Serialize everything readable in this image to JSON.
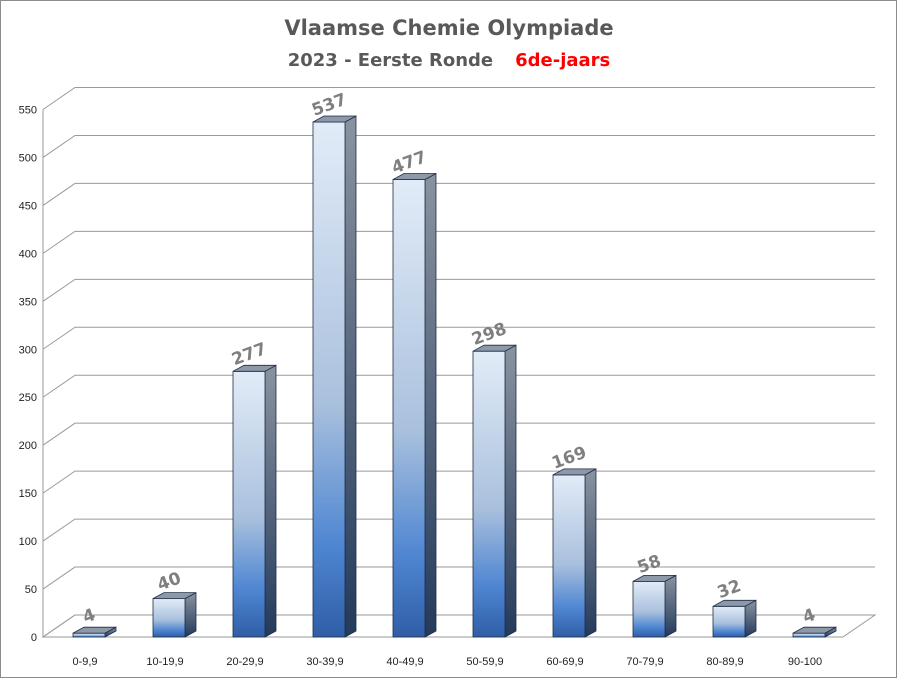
{
  "chart_data": {
    "type": "bar",
    "title": "Vlaamse Chemie Olympiade",
    "subtitle_main": "2023 - Eerste Ronde",
    "subtitle_highlight": "6de-jaars",
    "categories": [
      "0-9,9",
      "10-19,9",
      "20-29,9",
      "30-39,9",
      "40-49,9",
      "50-59,9",
      "60-69,9",
      "70-79,9",
      "80-89,9",
      "90-100"
    ],
    "values": [
      4,
      40,
      277,
      537,
      477,
      298,
      169,
      58,
      32,
      4
    ],
    "ylim": [
      0,
      550
    ],
    "yticks": [
      0,
      50,
      100,
      150,
      200,
      250,
      300,
      350,
      400,
      450,
      500,
      550
    ],
    "grid": true,
    "style3d": true,
    "colors": {
      "highlight": "#ff0000",
      "bar_top": "#dde9f7",
      "bar_bottom": "#2d5fa8",
      "bar_side": "#2a3d5c",
      "label": "#7f7f7f"
    }
  }
}
